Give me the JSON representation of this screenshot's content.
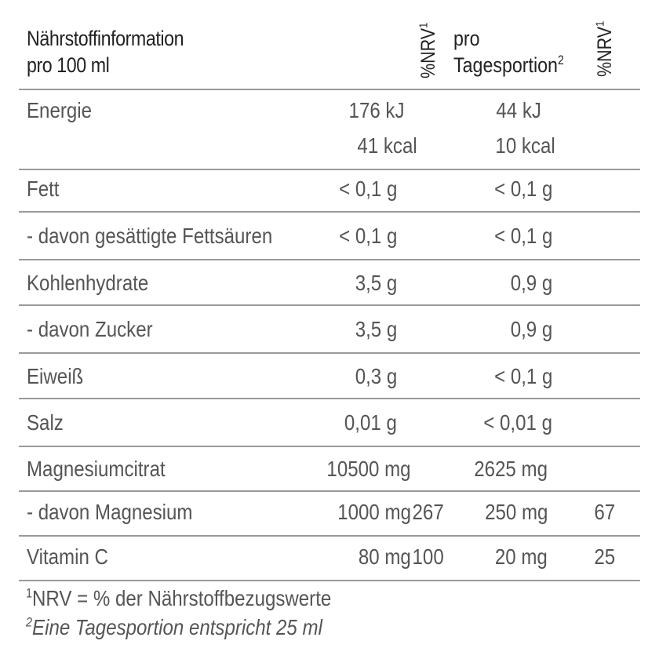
{
  "header": {
    "title_line1": "Nährstoffinformation",
    "title_line2": "pro 100 ml",
    "nrv_label": "%NRV",
    "nrv_sup": "1",
    "serving_line1": "pro",
    "serving_line2": "Tagesportion",
    "serving_sup": "2"
  },
  "rows": [
    {
      "label": "Energie",
      "v1": "176 kJ",
      "v1b": "41 kcal",
      "v2": "44 kJ",
      "v2b": "10 kcal"
    },
    {
      "label": "Fett",
      "v1": "< 0,1 g",
      "v2": "< 0,1 g"
    },
    {
      "label": " - davon gesättigte Fettsäuren",
      "v1": "< 0,1 g",
      "v2": "< 0,1 g"
    },
    {
      "label": "Kohlenhydrate",
      "v1": "3,5 g",
      "v2": "0,9 g"
    },
    {
      "label": " - davon Zucker",
      "v1": "3,5 g",
      "v2": "0,9 g"
    },
    {
      "label": "Eiweiß",
      "v1": "0,3 g",
      "v2": "< 0,1 g"
    },
    {
      "label": "Salz",
      "v1": "0,01 g",
      "v2": "< 0,01 g"
    },
    {
      "label": "Magnesiumcitrat",
      "v1": "10500 mg",
      "v2": "2625 mg"
    },
    {
      "label": "- davon Magnesium",
      "v1": "1000 mg",
      "n1": "267",
      "v2": "250 mg",
      "n2": "67"
    },
    {
      "label": "Vitamin C",
      "v1": "80 mg",
      "n1": "100",
      "v2": "20 mg",
      "n2": "25"
    }
  ],
  "footnotes": {
    "f1_sup": "1",
    "f1": "NRV = % der Nährstoffbezugswerte",
    "f2_sup": "2",
    "f2": "Eine Tagesportion entspricht 25 ml"
  }
}
